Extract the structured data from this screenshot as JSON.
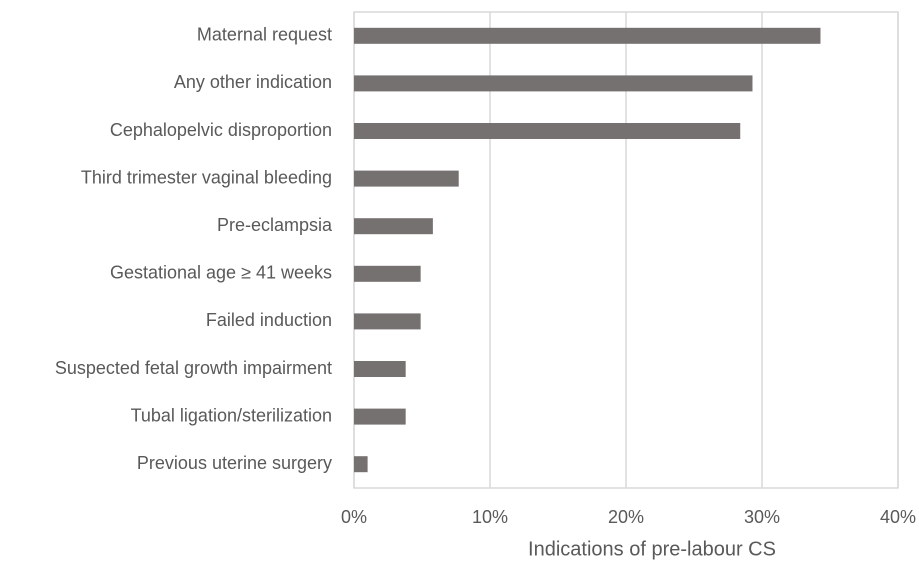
{
  "chart_data": {
    "type": "bar",
    "orientation": "horizontal",
    "x_label": "Indications of pre-labour CS",
    "categories": [
      "Maternal request",
      "Any other indication",
      "Cephalopelvic disproportion",
      "Third trimester vaginal bleeding",
      "Pre-eclampsia",
      "Gestational age ≥ 41 weeks",
      "Failed induction",
      "Suspected fetal growth impairment",
      "Tubal ligation/sterilization",
      "Previous uterine surgery"
    ],
    "values": [
      34.3,
      29.3,
      28.4,
      7.7,
      5.8,
      4.9,
      4.9,
      3.8,
      3.8,
      1.0
    ],
    "color": "#767171",
    "xlim": [
      0,
      40
    ],
    "xticks": [
      {
        "value": 0,
        "label": "0%"
      },
      {
        "value": 10,
        "label": "10%"
      },
      {
        "value": 20,
        "label": "20%"
      },
      {
        "value": 30,
        "label": "30%"
      },
      {
        "value": 40,
        "label": "40%"
      }
    ],
    "grid": true
  }
}
